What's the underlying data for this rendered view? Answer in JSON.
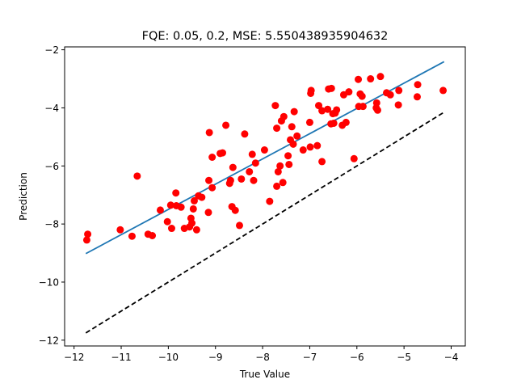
{
  "chart_data": {
    "type": "scatter",
    "title": "FQE: 0.05, 0.2, MSE: 5.550438935904632",
    "xlabel": "True Value",
    "ylabel": "Prediction",
    "xlim": [
      -12.2,
      -3.7
    ],
    "ylim": [
      -12.2,
      -1.9
    ],
    "xticks": [
      -12,
      -11,
      -10,
      -9,
      -8,
      -7,
      -6,
      -5,
      -4
    ],
    "yticks": [
      -12,
      -10,
      -8,
      -6,
      -4,
      -2
    ],
    "grid": false,
    "colors": {
      "points": "#ff0000",
      "fit": "#1f77b4",
      "identity": "#000000"
    },
    "fit_line": {
      "x": [
        -11.75,
        -4.15
      ],
      "y": [
        -9.02,
        -2.41
      ]
    },
    "identity_line": {
      "x": [
        -11.75,
        -4.15
      ],
      "y": [
        -11.75,
        -4.15
      ],
      "style": "dashed"
    },
    "points": [
      [
        -11.73,
        -8.55
      ],
      [
        -11.71,
        -8.35
      ],
      [
        -11.02,
        -8.2
      ],
      [
        -10.77,
        -8.42
      ],
      [
        -10.66,
        -6.35
      ],
      [
        -10.43,
        -8.35
      ],
      [
        -10.34,
        -8.4
      ],
      [
        -10.17,
        -7.52
      ],
      [
        -10.02,
        -7.92
      ],
      [
        -9.95,
        -7.35
      ],
      [
        -9.93,
        -8.15
      ],
      [
        -9.84,
        -6.93
      ],
      [
        -9.83,
        -7.37
      ],
      [
        -9.73,
        -7.42
      ],
      [
        -9.66,
        -8.15
      ],
      [
        -9.55,
        -8.1
      ],
      [
        -9.52,
        -7.8
      ],
      [
        -9.5,
        -7.97
      ],
      [
        -9.47,
        -7.48
      ],
      [
        -9.45,
        -7.2
      ],
      [
        -9.4,
        -8.2
      ],
      [
        -9.36,
        -7.03
      ],
      [
        -9.29,
        -7.08
      ],
      [
        -9.15,
        -7.6
      ],
      [
        -9.14,
        -6.5
      ],
      [
        -9.13,
        -4.85
      ],
      [
        -9.07,
        -5.7
      ],
      [
        -9.07,
        -6.75
      ],
      [
        -8.9,
        -5.57
      ],
      [
        -8.85,
        -5.55
      ],
      [
        -8.78,
        -4.6
      ],
      [
        -8.7,
        -6.6
      ],
      [
        -8.68,
        -6.5
      ],
      [
        -8.65,
        -7.4
      ],
      [
        -8.63,
        -6.05
      ],
      [
        -8.58,
        -7.53
      ],
      [
        -8.49,
        -8.05
      ],
      [
        -8.45,
        -6.45
      ],
      [
        -8.38,
        -4.9
      ],
      [
        -8.28,
        -6.2
      ],
      [
        -8.22,
        -5.6
      ],
      [
        -8.19,
        -6.5
      ],
      [
        -8.15,
        -5.9
      ],
      [
        -7.96,
        -5.45
      ],
      [
        -7.85,
        -7.22
      ],
      [
        -7.73,
        -3.92
      ],
      [
        -7.7,
        -6.7
      ],
      [
        -7.7,
        -4.7
      ],
      [
        -7.67,
        -6.2
      ],
      [
        -7.63,
        -6.0
      ],
      [
        -7.6,
        -4.45
      ],
      [
        -7.57,
        -6.57
      ],
      [
        -7.55,
        -4.3
      ],
      [
        -7.46,
        -5.65
      ],
      [
        -7.44,
        -5.95
      ],
      [
        -7.41,
        -5.1
      ],
      [
        -7.38,
        -4.65
      ],
      [
        -7.35,
        -5.25
      ],
      [
        -7.33,
        -4.13
      ],
      [
        -7.27,
        -4.97
      ],
      [
        -7.14,
        -5.45
      ],
      [
        -7.0,
        -4.5
      ],
      [
        -6.99,
        -5.35
      ],
      [
        -6.98,
        -3.5
      ],
      [
        -6.97,
        -3.4
      ],
      [
        -6.84,
        -5.3
      ],
      [
        -6.81,
        -3.92
      ],
      [
        -6.74,
        -5.85
      ],
      [
        -6.74,
        -4.1
      ],
      [
        -6.62,
        -4.05
      ],
      [
        -6.6,
        -3.35
      ],
      [
        -6.55,
        -4.55
      ],
      [
        -6.54,
        -3.33
      ],
      [
        -6.51,
        -4.2
      ],
      [
        -6.49,
        -4.53
      ],
      [
        -6.46,
        -4.18
      ],
      [
        -6.43,
        -4.07
      ],
      [
        -6.31,
        -4.6
      ],
      [
        -6.28,
        -3.55
      ],
      [
        -6.23,
        -4.5
      ],
      [
        -6.17,
        -3.45
      ],
      [
        -6.06,
        -5.75
      ],
      [
        -5.97,
        -3.02
      ],
      [
        -5.96,
        -3.95
      ],
      [
        -5.93,
        -3.52
      ],
      [
        -5.89,
        -3.6
      ],
      [
        -5.87,
        -3.95
      ],
      [
        -5.71,
        -3.0
      ],
      [
        -5.59,
        -4.0
      ],
      [
        -5.58,
        -3.83
      ],
      [
        -5.56,
        -4.08
      ],
      [
        -5.5,
        -2.92
      ],
      [
        -5.37,
        -3.48
      ],
      [
        -5.29,
        -3.55
      ],
      [
        -5.12,
        -3.9
      ],
      [
        -5.11,
        -3.4
      ],
      [
        -4.72,
        -3.62
      ],
      [
        -4.71,
        -3.2
      ],
      [
        -4.17,
        -3.4
      ]
    ]
  }
}
